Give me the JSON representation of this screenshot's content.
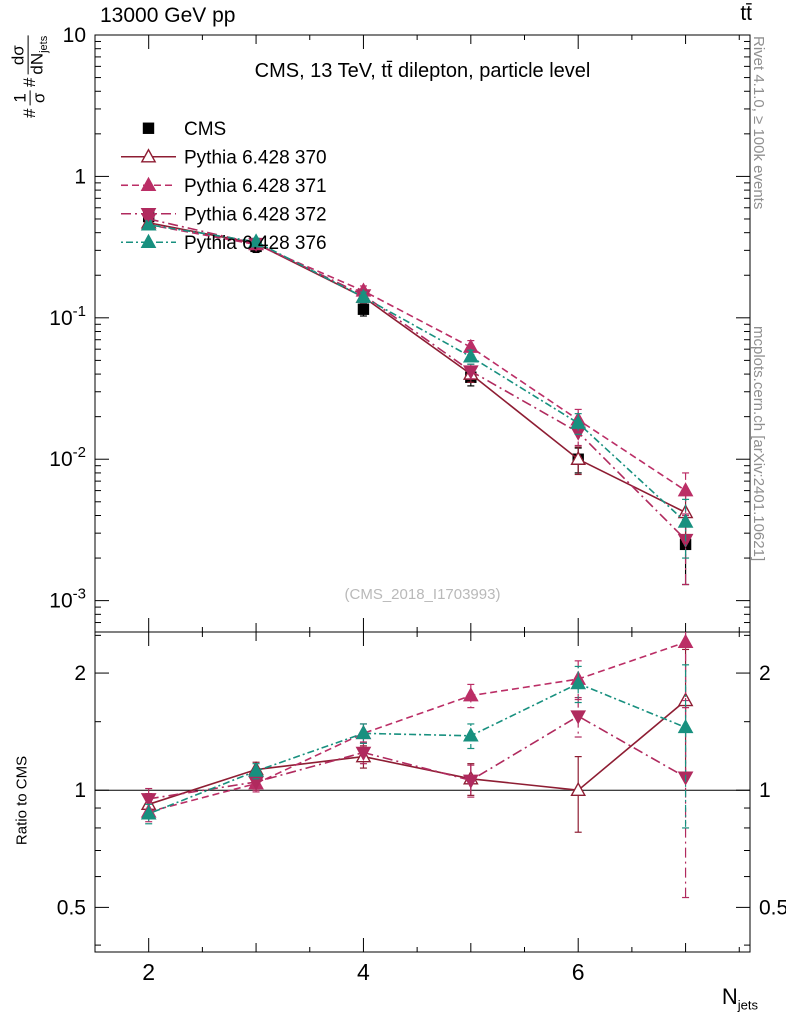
{
  "header": {
    "collider": "13000 GeV pp",
    "process": "tt̄"
  },
  "title": "CMS, 13 TeV, tt̄ dilepton, particle level",
  "watermark": "(CMS_2018_I1703993)",
  "right_top": "Rivet 4.1.0, ≥ 100k events",
  "right_bottom": "mcplots.cern.ch [arXiv:2401.10621]",
  "ratio_label": "Ratio to CMS",
  "xlabel": {
    "main": "N",
    "sub": "jets"
  },
  "ylabel": {
    "pre1": "#",
    "n1": "1",
    "d1": "σ",
    "pre2": "#",
    "n2": "dσ",
    "d2": "dN",
    "d2sub": "jets"
  },
  "chart_data": {
    "type": "line",
    "x": [
      2,
      3,
      4,
      5,
      6,
      7
    ],
    "xlim": [
      1.5,
      7.6
    ],
    "xticks": {
      "major": [
        2,
        4,
        6
      ],
      "medium": [
        3,
        5,
        7
      ],
      "minor": [
        2.5,
        3.5,
        4.5,
        5.5,
        6.5,
        7.5
      ]
    },
    "main": {
      "ylim": [
        0.0006,
        10
      ],
      "yscale": "log",
      "yticks": [
        {
          "v": 10,
          "label": "10"
        },
        {
          "v": 1,
          "label": "1"
        },
        {
          "v": 0.1,
          "label": "10",
          "exp": "-1"
        },
        {
          "v": 0.01,
          "label": "10",
          "exp": "-2"
        },
        {
          "v": 0.001,
          "label": "10",
          "exp": "-3"
        }
      ],
      "series": [
        {
          "name": "CMS",
          "color": "#000000",
          "marker": "square",
          "fill": true,
          "line": "none",
          "dash": "",
          "values": [
            0.52,
            0.32,
            0.115,
            0.038,
            0.01,
            0.0025
          ],
          "errors": [
            0.05,
            0.03,
            0.012,
            0.005,
            0.002,
            0.0012
          ]
        },
        {
          "name": "Pythia 6.428 370",
          "color": "#8e1d33",
          "marker": "triangle-up",
          "fill": false,
          "line": "solid",
          "dash": "",
          "values": [
            0.47,
            0.335,
            0.14,
            0.04,
            0.01,
            0.0042
          ],
          "errors": [
            0.035,
            0.022,
            0.013,
            0.005,
            0.0022,
            0.0016
          ]
        },
        {
          "name": "Pythia 6.428 371",
          "color": "#bb2e66",
          "marker": "triangle-up",
          "fill": true,
          "line": "dashed",
          "dash": "7 4",
          "values": [
            0.455,
            0.33,
            0.155,
            0.062,
            0.019,
            0.006
          ],
          "errors": [
            0.03,
            0.02,
            0.013,
            0.007,
            0.0035,
            0.002
          ]
        },
        {
          "name": "Pythia 6.428 372",
          "color": "#b02a5e",
          "marker": "triangle-down",
          "fill": true,
          "line": "dashdot",
          "dash": "10 4 2 4",
          "values": [
            0.5,
            0.335,
            0.145,
            0.042,
            0.0155,
            0.0027
          ],
          "errors": [
            0.03,
            0.02,
            0.012,
            0.005,
            0.003,
            0.0014
          ]
        },
        {
          "name": "Pythia 6.428 376",
          "color": "#18907f",
          "marker": "triangle-up",
          "fill": true,
          "line": "dashdot",
          "dash": "2 3 7 3",
          "values": [
            0.455,
            0.345,
            0.14,
            0.053,
            0.018,
            0.0036
          ],
          "errors": [
            0.03,
            0.02,
            0.012,
            0.006,
            0.003,
            0.0016
          ]
        }
      ]
    },
    "ratio": {
      "ylim": [
        0.384,
        2.55
      ],
      "yscale": "log",
      "ref": 1,
      "yticks": [
        {
          "v": 0.5,
          "label": "0.5"
        },
        {
          "v": 1,
          "label": "1"
        },
        {
          "v": 2,
          "label": "2"
        }
      ],
      "yminor": [
        0.4,
        0.6,
        0.7,
        0.8,
        0.9,
        1.5,
        2.5
      ],
      "series": [
        {
          "name": "Pythia 6.428 370",
          "values": [
            0.92,
            1.13,
            1.22,
            1.07,
            1.0,
            1.7
          ],
          "errors": [
            0.06,
            0.05,
            0.08,
            0.1,
            0.22,
            0.6
          ]
        },
        {
          "name": "Pythia 6.428 371",
          "values": [
            0.88,
            1.04,
            1.4,
            1.75,
            1.93,
            2.4
          ],
          "errors": [
            0.05,
            0.05,
            0.08,
            0.12,
            0.22,
            0.7
          ]
        },
        {
          "name": "Pythia 6.428 372",
          "values": [
            0.95,
            1.05,
            1.25,
            1.06,
            1.55,
            1.08
          ],
          "errors": [
            0.06,
            0.05,
            0.08,
            0.1,
            0.18,
            0.55
          ]
        },
        {
          "name": "Pythia 6.428 376",
          "values": [
            0.87,
            1.12,
            1.4,
            1.38,
            1.88,
            1.45
          ],
          "errors": [
            0.05,
            0.05,
            0.08,
            0.1,
            0.2,
            0.65
          ]
        }
      ]
    },
    "legend": {
      "entries": [
        "CMS",
        "Pythia 6.428 370",
        "Pythia 6.428 371",
        "Pythia 6.428 372",
        "Pythia 6.428 376"
      ]
    }
  }
}
